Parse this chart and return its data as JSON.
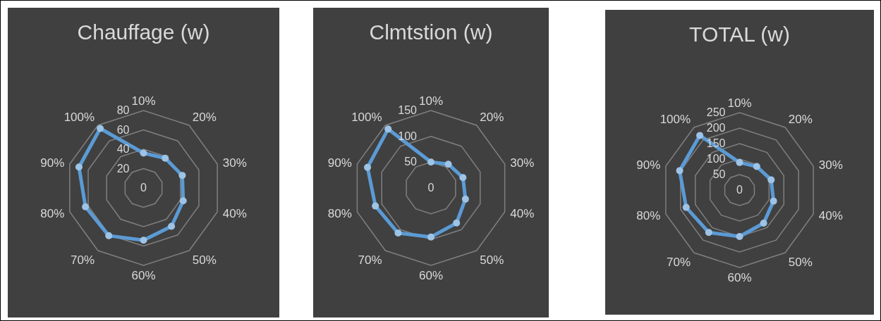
{
  "chart_data": [
    {
      "type": "radar",
      "title": "Chauffage (w)",
      "categories": [
        "10%",
        "20%",
        "30%",
        "40%",
        "50%",
        "60%",
        "70%",
        "80%",
        "90%",
        "100%"
      ],
      "series": [
        {
          "color": "#5b9bd5",
          "values": [
            36,
            38,
            42,
            43,
            49,
            54,
            61,
            63,
            70,
            76
          ]
        }
      ],
      "ylim": [
        0,
        80
      ],
      "yticks": [
        0,
        20,
        40,
        60,
        80
      ],
      "grid": true,
      "marker": "circle"
    },
    {
      "type": "radar",
      "title": "Clmtstion (w)",
      "categories": [
        "10%",
        "20%",
        "30%",
        "40%",
        "50%",
        "60%",
        "70%",
        "80%",
        "90%",
        "100%"
      ],
      "series": [
        {
          "color": "#5b9bd5",
          "values": [
            50,
            57,
            65,
            70,
            84,
            95,
            108,
            113,
            129,
            141
          ]
        }
      ],
      "ylim": [
        0,
        150
      ],
      "yticks": [
        0,
        50,
        100,
        150
      ],
      "grid": true,
      "marker": "circle"
    },
    {
      "type": "radar",
      "title": "TOTAL (w)",
      "categories": [
        "10%",
        "20%",
        "30%",
        "40%",
        "50%",
        "60%",
        "70%",
        "80%",
        "90%",
        "100%"
      ],
      "series": [
        {
          "color": "#5b9bd5",
          "values": [
            89,
            94,
            107,
            115,
            132,
            150,
            169,
            181,
            203,
            218
          ]
        }
      ],
      "ylim": [
        0,
        250
      ],
      "yticks": [
        0,
        50,
        100,
        150,
        200,
        250
      ],
      "grid": true,
      "marker": "circle"
    }
  ]
}
